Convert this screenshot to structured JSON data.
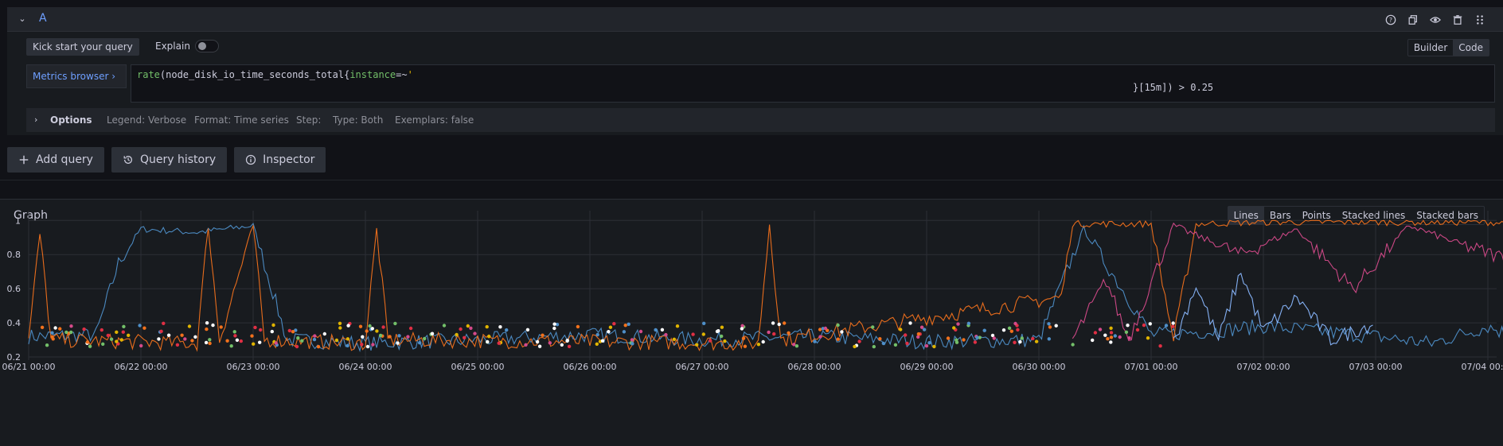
{
  "query": {
    "name": "A",
    "kick_start": "Kick start your query",
    "explain_label": "Explain",
    "mode_builder": "Builder",
    "mode_code": "Code",
    "metrics_browser": "Metrics browser",
    "code_line1_fn": "rate",
    "code_line1_rest": "(node_disk_io_time_seconds_total{",
    "code_line1_label": "instance",
    "code_line1_op": "=~",
    "code_line1_str": "'",
    "code_line2": "}[15m]) > 0.25",
    "options_label": "Options",
    "option_items": [
      "Legend: Verbose",
      "Format: Time series",
      "Step:",
      "Type: Both",
      "Exemplars: false"
    ]
  },
  "actions": {
    "add_query": "Add query",
    "query_history": "Query history",
    "inspector": "Inspector"
  },
  "graph": {
    "title": "Graph",
    "types": [
      "Lines",
      "Bars",
      "Points",
      "Stacked lines",
      "Stacked bars"
    ],
    "active_type": "Lines"
  },
  "colors": {
    "blue": "#4e8fc9",
    "orange": "#f2711c",
    "pink": "#d44a8a",
    "lightblue": "#8ab8ff",
    "yellow": "#e0b400",
    "green": "#73bf69"
  },
  "chart_data": {
    "type": "line",
    "y_ticks": [
      "1",
      "0.8",
      "0.6",
      "0.4",
      "0.2"
    ],
    "ylim": [
      0.2,
      1.02
    ],
    "x_ticks": [
      "06/21 00:00",
      "06/22 00:00",
      "06/23 00:00",
      "06/24 00:00",
      "06/25 00:00",
      "06/26 00:00",
      "06/27 00:00",
      "06/28 00:00",
      "06/29 00:00",
      "06/30 00:00",
      "07/01 00:00",
      "07/02 00:00",
      "07/03 00:00",
      "07/04 00:00"
    ],
    "grid": true,
    "series": [
      {
        "color": "#4e8fc9",
        "points": [
          [
            0,
            0.32
          ],
          [
            0.6,
            0.33
          ],
          [
            0.8,
            0.75
          ],
          [
            1,
            0.95
          ],
          [
            1.5,
            0.93
          ],
          [
            2,
            0.97
          ],
          [
            2.3,
            0.3
          ],
          [
            3,
            0.28
          ],
          [
            4,
            0.3
          ],
          [
            5,
            0.33
          ],
          [
            6,
            0.3
          ],
          [
            7,
            0.32
          ],
          [
            8,
            0.29
          ],
          [
            9,
            0.3
          ],
          [
            9.4,
            0.95
          ],
          [
            10,
            0.33
          ],
          [
            10.5,
            0.35
          ],
          [
            11,
            0.38
          ],
          [
            12,
            0.32
          ],
          [
            12.5,
            0.28
          ],
          [
            13,
            0.38
          ],
          [
            13.3,
            0.3
          ]
        ]
      },
      {
        "color": "#f2711c",
        "points": [
          [
            0,
            0.3
          ],
          [
            0.1,
            0.92
          ],
          [
            0.2,
            0.3
          ],
          [
            1.5,
            0.28
          ],
          [
            1.6,
            0.97
          ],
          [
            1.7,
            0.3
          ],
          [
            2,
            0.97
          ],
          [
            2.1,
            0.3
          ],
          [
            3,
            0.28
          ],
          [
            3.1,
            0.95
          ],
          [
            3.2,
            0.3
          ],
          [
            6.5,
            0.28
          ],
          [
            6.6,
            0.98
          ],
          [
            6.7,
            0.3
          ],
          [
            9.2,
            0.55
          ],
          [
            9.3,
            0.98
          ],
          [
            10,
            0.98
          ],
          [
            10.2,
            0.3
          ],
          [
            10.4,
            0.98
          ],
          [
            11,
            0.99
          ],
          [
            12,
            0.99
          ],
          [
            13,
            0.99
          ],
          [
            13.3,
            0.98
          ]
        ]
      },
      {
        "color": "#d44a8a",
        "points": [
          [
            9.3,
            0.3
          ],
          [
            9.6,
            0.65
          ],
          [
            9.8,
            0.3
          ],
          [
            10.2,
            0.97
          ],
          [
            10.8,
            0.8
          ],
          [
            11.3,
            0.95
          ],
          [
            11.8,
            0.6
          ],
          [
            12.3,
            0.97
          ],
          [
            12.8,
            0.85
          ],
          [
            13.3,
            0.75
          ]
        ]
      },
      {
        "color": "#8ab8ff",
        "points": [
          [
            10.2,
            0.28
          ],
          [
            10.4,
            0.62
          ],
          [
            10.6,
            0.3
          ],
          [
            10.8,
            0.7
          ],
          [
            11,
            0.35
          ],
          [
            11.3,
            0.55
          ],
          [
            11.6,
            0.3
          ],
          [
            12,
            0.4
          ]
        ]
      }
    ]
  }
}
